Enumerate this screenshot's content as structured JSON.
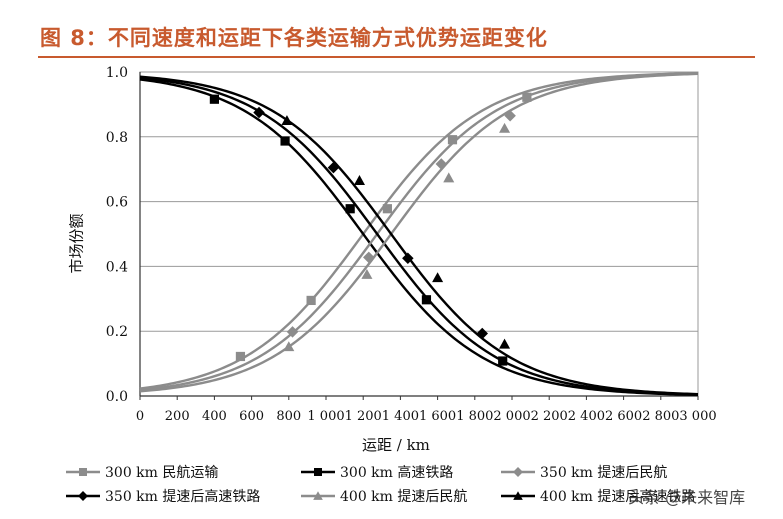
{
  "figure_title": "图 8：不同速度和运距下各类运输方式优势运距变化",
  "watermark": "头条 @未来智库",
  "chart_data": {
    "type": "line",
    "xlabel": "运距 / km",
    "ylabel": "市场份额",
    "xlim": [
      0,
      3000
    ],
    "ylim": [
      0,
      1.0
    ],
    "x_ticks": [
      0,
      200,
      400,
      600,
      800,
      1000,
      1200,
      1400,
      1600,
      1800,
      2000,
      2200,
      2400,
      2600,
      2800,
      3000
    ],
    "x_tick_labels": [
      "0",
      "200",
      "400",
      "600",
      "800",
      "1 000",
      "1 200",
      "1 400",
      "1 600",
      "1 800",
      "2 000",
      "2 200",
      "2 400",
      "2 600",
      "2 800",
      "3 000"
    ],
    "y_ticks": [
      0,
      0.2,
      0.4,
      0.6,
      0.8,
      1.0
    ],
    "y_tick_labels": [
      "0.0",
      "0.2",
      "0.4",
      "0.6",
      "0.8",
      "1.0"
    ],
    "grid": "horizontal",
    "legend_position": "bottom",
    "series": [
      {
        "name": "300 km 民航运输",
        "color": "#8c8c8c",
        "marker": "square",
        "curve": {
          "mid": 1200,
          "scale": 320,
          "rising": true
        },
        "markers": [
          [
            540,
            0.122
          ],
          [
            920,
            0.295
          ],
          [
            1330,
            0.578
          ],
          [
            1680,
            0.791
          ],
          [
            2080,
            0.922
          ]
        ]
      },
      {
        "name": "300 km 高速铁路",
        "color": "#000000",
        "marker": "square",
        "curve": {
          "mid": 1200,
          "scale": 320,
          "rising": false
        },
        "markers": [
          [
            400,
            0.916
          ],
          [
            780,
            0.787
          ],
          [
            1130,
            0.578
          ],
          [
            1540,
            0.297
          ],
          [
            1950,
            0.108
          ]
        ]
      },
      {
        "name": "350 km 提速后民航",
        "color": "#8c8c8c",
        "marker": "diamond",
        "curve": {
          "mid": 1275,
          "scale": 320,
          "rising": true
        },
        "markers": [
          [
            820,
            0.198
          ],
          [
            1230,
            0.428
          ],
          [
            1620,
            0.716
          ],
          [
            1990,
            0.865
          ]
        ]
      },
      {
        "name": "350 km 提速后高速铁路",
        "color": "#000000",
        "marker": "diamond",
        "curve": {
          "mid": 1275,
          "scale": 320,
          "rising": false
        },
        "markers": [
          [
            640,
            0.875
          ],
          [
            1040,
            0.705
          ],
          [
            1440,
            0.425
          ],
          [
            1840,
            0.193
          ]
        ]
      },
      {
        "name": "400 km 提速后民航",
        "color": "#8c8c8c",
        "marker": "triangle",
        "curve": {
          "mid": 1350,
          "scale": 320,
          "rising": true
        },
        "markers": [
          [
            800,
            0.152
          ],
          [
            1220,
            0.375
          ],
          [
            1660,
            0.673
          ],
          [
            1960,
            0.826
          ]
        ]
      },
      {
        "name": "400 km 提速后高速铁路",
        "color": "#000000",
        "marker": "triangle",
        "curve": {
          "mid": 1350,
          "scale": 320,
          "rising": false
        },
        "markers": [
          [
            790,
            0.85
          ],
          [
            1180,
            0.665
          ],
          [
            1600,
            0.365
          ],
          [
            1960,
            0.16
          ]
        ]
      }
    ]
  }
}
